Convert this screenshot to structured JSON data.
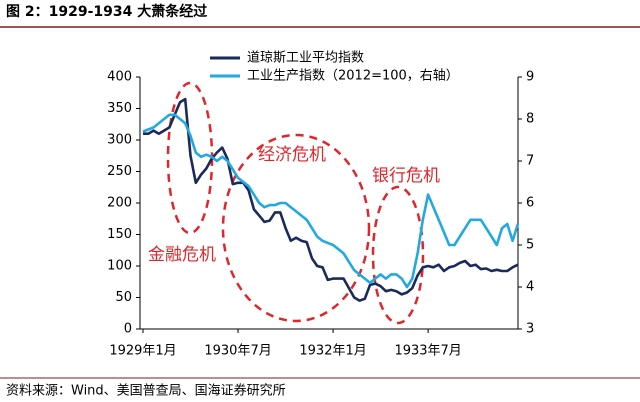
{
  "chart_data": {
    "type": "line",
    "title": "图 2：1929-1934 大萧条经过",
    "source": "资料来源：Wind、美国普查局、国海证券研究所",
    "categories": [
      "1929年1月",
      null,
      null,
      null,
      null,
      null,
      null,
      null,
      null,
      null,
      null,
      null,
      null,
      null,
      null,
      null,
      null,
      null,
      "1930年7月",
      null,
      null,
      null,
      null,
      null,
      null,
      null,
      null,
      null,
      null,
      null,
      null,
      null,
      null,
      null,
      null,
      null,
      "1932年1月",
      null,
      null,
      null,
      null,
      null,
      null,
      null,
      null,
      null,
      null,
      null,
      null,
      null,
      null,
      null,
      null,
      null,
      "1933年7月",
      null,
      null,
      null,
      null,
      null,
      null,
      null,
      null,
      null,
      null,
      null,
      null,
      null,
      null,
      null,
      null,
      null
    ],
    "series": [
      {
        "name": "道琼斯工业平均指数",
        "color": "#1b2a5c",
        "axis": "y",
        "values": [
          310,
          310,
          315,
          310,
          315,
          320,
          340,
          360,
          365,
          275,
          232,
          245,
          255,
          270,
          280,
          288,
          270,
          230,
          232,
          232,
          220,
          190,
          180,
          170,
          172,
          185,
          185,
          160,
          140,
          145,
          140,
          138,
          112,
          100,
          98,
          78,
          80,
          80,
          80,
          65,
          50,
          45,
          48,
          70,
          72,
          68,
          60,
          62,
          60,
          55,
          58,
          65,
          85,
          98,
          100,
          98,
          102,
          92,
          98,
          100,
          105,
          108,
          100,
          102,
          95,
          96,
          92,
          94,
          92,
          92,
          98,
          102
        ]
      },
      {
        "name": "工业生产指数（2012=100，右轴）",
        "color": "#22a9e1",
        "axis": "y2",
        "values": [
          7.7,
          7.75,
          7.8,
          7.9,
          8.0,
          8.1,
          8.1,
          8.0,
          7.9,
          7.6,
          7.2,
          7.1,
          7.15,
          7.1,
          7.0,
          7.1,
          7.0,
          6.8,
          6.6,
          6.5,
          6.4,
          6.2,
          6.0,
          5.9,
          5.95,
          5.95,
          6.0,
          6.0,
          5.9,
          5.8,
          5.7,
          5.6,
          5.4,
          5.2,
          5.1,
          5.05,
          5.0,
          4.9,
          4.8,
          4.6,
          4.4,
          4.3,
          4.2,
          4.1,
          4.2,
          4.3,
          4.2,
          4.3,
          4.3,
          4.2,
          4.0,
          4.2,
          4.8,
          5.6,
          6.2,
          5.9,
          5.6,
          5.3,
          5.0,
          5.0,
          5.2,
          5.4,
          5.6,
          5.6,
          5.6,
          5.4,
          5.2,
          5.0,
          5.4,
          5.5,
          5.1,
          5.5
        ]
      }
    ],
    "ylim": [
      0,
      400
    ],
    "yticks": [
      0,
      50,
      100,
      150,
      200,
      250,
      300,
      350,
      400
    ],
    "y2lim": [
      3,
      9
    ],
    "y2ticks": [
      3,
      4,
      5,
      6,
      7,
      8,
      9
    ],
    "annotations": [
      "金融危机",
      "经济危机",
      "银行危机"
    ],
    "grid": false
  }
}
